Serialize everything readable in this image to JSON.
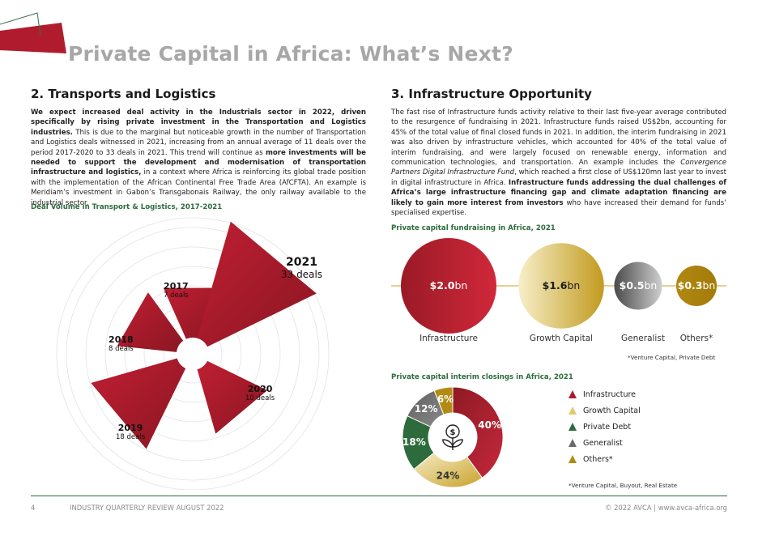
{
  "page": {
    "title": "Private Capital in Africa: What’s Next?",
    "colors": {
      "brand_red": "#b01c2e",
      "dark_red": "#8e1a24",
      "gold": "#b38a12",
      "light_gold": "#f3e6b3",
      "green": "#2d6b3c",
      "grey": "#6b6b6b"
    }
  },
  "left": {
    "heading": "2. Transports and Logistics",
    "p1_bold": "We expect increased deal activity in the Industrials sector in 2022, driven specifically by rising private investment in the Transportation and Logistics industries.",
    "p1_rest": " This is due to the marginal but noticeable growth in the number of Transportation and Logistics deals witnessed in 2021, increasing from an annual average of 11 deals over the period 2017-2020 to 33 deals in 2021. This trend will continue as ",
    "p1_bold2": "more investments will be needed to support the development and modernisation of transportation infrastructure and logistics,",
    "p1_tail": " in a context where Africa is reinforcing its global trade position with the implementation of the African Continental Free Trade Area (AfCFTA). An example is Meridiam’s investment in Gabon’s Transgabonais Railway, the only railway available to the industrial sector.",
    "chart_title": "Deal Volume in Transport & Logistics, 2017-2021"
  },
  "right": {
    "heading": "3. Infrastructure Opportunity",
    "p1": "The fast rise of Infrastructure funds activity relative to their last five-year average contributed to the resurgence of fundraising in 2021. Infrastructure funds raised US$2bn, accounting for 45% of the total value of final closed funds in 2021. In addition, the interim fundraising in 2021 was also driven by infrastructure vehicles, which accounted for 40% of the total value of interim fundraising, and were largely focused on renewable energy, information and communication technologies, and transportation. An example includes the ",
    "p1_italic": "Convergence Partners Digital Infrastructure Fund",
    "p1_mid": ", which reached a first close of US$120mn last year to invest in digital infrastructure in Africa. ",
    "p1_bold": "Infrastructure funds addressing the dual challenges of Africa’s large infrastructure financing gap and climate adaptation financing are likely to gain more interest from investors",
    "p1_tail": " who have increased their demand for funds’ specialised expertise.",
    "fundraising_title": "Private capital fundraising in Africa, 2021",
    "fundraising_note": "*Venture Capital, Private Debt",
    "interim_title": "Private capital interim closings in Africa, 2021",
    "interim_note": "*Venture Capital, Buyout, Real Estate"
  },
  "chart_data": [
    {
      "type": "polar-bar",
      "title": "Deal Volume in Transport & Logistics, 2017-2021",
      "categories": [
        "2017",
        "2018",
        "2019",
        "2020",
        "2021"
      ],
      "values": [
        7,
        8,
        18,
        10,
        33
      ],
      "value_unit": "deals",
      "labels": [
        "7 deals",
        "8 deals",
        "18 deals",
        "10 deals",
        "33 deals"
      ]
    },
    {
      "type": "bubble",
      "title": "Private capital fundraising in Africa, 2021",
      "categories": [
        "Infrastructure",
        "Growth Capital",
        "Generalist",
        "Others*"
      ],
      "values": [
        2.0,
        1.6,
        0.5,
        0.3
      ],
      "value_labels": [
        "$2.0",
        "$1.6",
        "$0.5",
        "$0.3"
      ],
      "unit": "bn",
      "note": "*Venture Capital, Private Debt"
    },
    {
      "type": "pie",
      "title": "Private capital interim closings in Africa, 2021",
      "categories": [
        "Infrastructure",
        "Growth Capital",
        "Private Debt",
        "Generalist",
        "Others*"
      ],
      "values": [
        40,
        24,
        18,
        12,
        6
      ],
      "value_labels": [
        "40%",
        "24%",
        "18%",
        "12%",
        "6%"
      ],
      "note": "*Venture Capital, Buyout, Real Estate"
    }
  ],
  "footer": {
    "page_number": "4",
    "publication": "INDUSTRY QUARTERLY REVIEW AUGUST 2022",
    "copyright": "© 2022 AVCA | www.avca-africa.org"
  }
}
